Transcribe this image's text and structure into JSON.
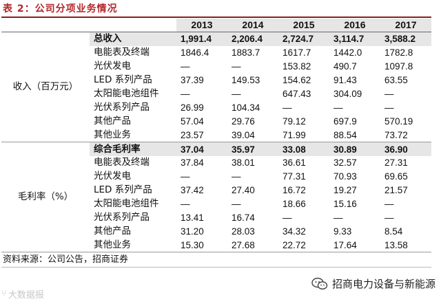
{
  "title": "表 2：公司分项业务情况",
  "columns": [
    "2013",
    "2014",
    "2015",
    "2016",
    "2017"
  ],
  "groups": {
    "revenue": "收入（百万元）",
    "margin": "毛利率（%）"
  },
  "revenue_rows": [
    {
      "label": "总收入",
      "values": [
        "1,991.4",
        "2,206.4",
        "2,724.7",
        "3,114.7",
        "3,588.2"
      ],
      "bold": true
    },
    {
      "label": "电能表及终端",
      "values": [
        "1846.4",
        "1883.7",
        "1617.7",
        "1442.0",
        "1782.8"
      ]
    },
    {
      "label": "光伏发电",
      "values": [
        "—",
        "—",
        "153.82",
        "490.7",
        "1097.8"
      ]
    },
    {
      "label": "LED 系列产品",
      "values": [
        "37.39",
        "149.53",
        "154.62",
        "91.43",
        "63.55"
      ]
    },
    {
      "label": "太阳能电池组件",
      "values": [
        "—",
        "—",
        "647.43",
        "304.09",
        "—"
      ]
    },
    {
      "label": "光伏系列产品",
      "values": [
        "26.99",
        "104.34",
        "—",
        "—",
        "—"
      ]
    },
    {
      "label": "其他产品",
      "values": [
        "57.04",
        "29.76",
        "79.12",
        "697.9",
        "570.19"
      ]
    },
    {
      "label": "其他业务",
      "values": [
        "23.57",
        "39.04",
        "71.99",
        "88.54",
        "73.72"
      ]
    }
  ],
  "margin_rows": [
    {
      "label": "综合毛利率",
      "values": [
        "37.04",
        "35.97",
        "33.08",
        "30.89",
        "36.90"
      ],
      "bold": true
    },
    {
      "label": "电能表及终端",
      "values": [
        "37.84",
        "38.01",
        "36.61",
        "32.57",
        "27.31"
      ]
    },
    {
      "label": "光伏发电",
      "values": [
        "—",
        "—",
        "77.31",
        "70.93",
        "69.65"
      ]
    },
    {
      "label": "LED 系列产品",
      "values": [
        "37.42",
        "27.40",
        "16.72",
        "19.27",
        "21.57"
      ]
    },
    {
      "label": "太阳能电池组件",
      "values": [
        "—",
        "—",
        "18.66",
        "15.16",
        "—"
      ]
    },
    {
      "label": "光伏系列产品",
      "values": [
        "13.41",
        "16.74",
        "—",
        "—",
        "—"
      ]
    },
    {
      "label": "其他产品",
      "values": [
        "31.20",
        "28.03",
        "34.32",
        "9.33",
        "8.54"
      ]
    },
    {
      "label": "其他业务",
      "values": [
        "15.30",
        "27.68",
        "22.72",
        "17.64",
        "13.58"
      ]
    }
  ],
  "source": "资料来源：公司公告，招商证券",
  "watermark_left": "大数据报",
  "watermark_right": "招商电力设备与新能源"
}
